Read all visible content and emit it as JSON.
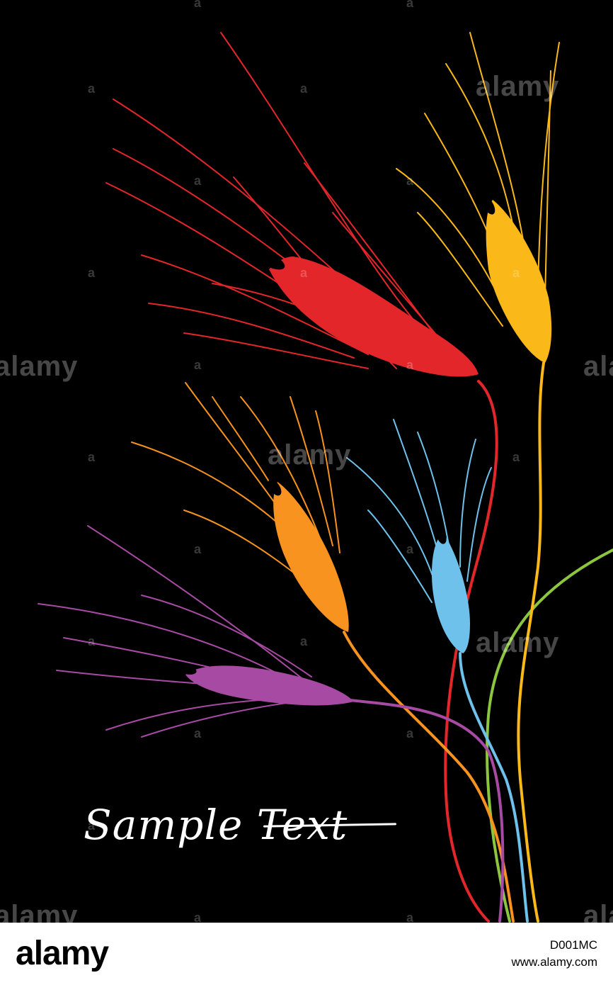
{
  "artwork": {
    "background_color": "#000000",
    "caption": "Sample Text",
    "wheat_colors": {
      "red": "#e3262a",
      "yellow": "#fbb919",
      "orange": "#f7931e",
      "blue": "#6ec1ea",
      "purple": "#a74aa3",
      "green": "#8cc63f"
    }
  },
  "watermarks": {
    "text": "alamy"
  },
  "footer": {
    "logo": "alamy",
    "image_id": "D001MC",
    "url": "www.alamy.com"
  }
}
